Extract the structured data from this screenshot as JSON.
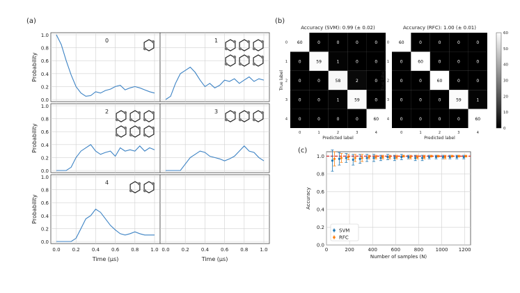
{
  "panel_labels": {
    "a": "(a)",
    "b": "(b)",
    "c": "(c)"
  },
  "colors": {
    "line": "#3b82c4",
    "grid": "#d0d0d0",
    "svm": "#1f77b4",
    "rfc": "#ff7f0e",
    "dash": "#d62728"
  },
  "chart_data": [
    {
      "type": "line",
      "panel": "a",
      "ylabel": "Probability",
      "xlabel": "Time (μs)",
      "xlim": [
        0,
        1.0
      ],
      "ylim": [
        0,
        1.0
      ],
      "xticks": [
        "0.0",
        "0.2",
        "0.4",
        "0.6",
        "0.8",
        "1.0"
      ],
      "yticks": [
        "0.0",
        "0.2",
        "0.4",
        "0.6",
        "0.8",
        "1.0"
      ],
      "subplots": [
        {
          "label": "0",
          "x": [
            0.0,
            0.05,
            0.1,
            0.15,
            0.2,
            0.25,
            0.3,
            0.35,
            0.4,
            0.45,
            0.5,
            0.55,
            0.6,
            0.65,
            0.7,
            0.75,
            0.8,
            0.85,
            0.9,
            0.95,
            1.0
          ],
          "y": [
            1.0,
            0.85,
            0.6,
            0.38,
            0.2,
            0.1,
            0.05,
            0.06,
            0.12,
            0.1,
            0.14,
            0.16,
            0.2,
            0.22,
            0.15,
            0.18,
            0.2,
            0.18,
            0.15,
            0.12,
            0.1
          ]
        },
        {
          "label": "1",
          "x": [
            0.0,
            0.05,
            0.1,
            0.15,
            0.2,
            0.25,
            0.3,
            0.35,
            0.4,
            0.45,
            0.5,
            0.55,
            0.6,
            0.65,
            0.7,
            0.75,
            0.8,
            0.85,
            0.9,
            0.95,
            1.0
          ],
          "y": [
            0.0,
            0.05,
            0.25,
            0.4,
            0.45,
            0.5,
            0.42,
            0.3,
            0.2,
            0.25,
            0.18,
            0.22,
            0.3,
            0.28,
            0.32,
            0.25,
            0.3,
            0.35,
            0.28,
            0.32,
            0.3
          ]
        },
        {
          "label": "2",
          "x": [
            0.0,
            0.05,
            0.1,
            0.15,
            0.2,
            0.25,
            0.3,
            0.35,
            0.4,
            0.45,
            0.5,
            0.55,
            0.6,
            0.65,
            0.7,
            0.75,
            0.8,
            0.85,
            0.9,
            0.95,
            1.0
          ],
          "y": [
            0.0,
            0.0,
            0.0,
            0.05,
            0.2,
            0.3,
            0.35,
            0.4,
            0.3,
            0.25,
            0.28,
            0.3,
            0.22,
            0.35,
            0.3,
            0.32,
            0.3,
            0.38,
            0.3,
            0.35,
            0.32
          ]
        },
        {
          "label": "3",
          "x": [
            0.0,
            0.05,
            0.1,
            0.15,
            0.2,
            0.25,
            0.3,
            0.35,
            0.4,
            0.45,
            0.5,
            0.55,
            0.6,
            0.65,
            0.7,
            0.75,
            0.8,
            0.85,
            0.9,
            0.95,
            1.0
          ],
          "y": [
            0.0,
            0.0,
            0.0,
            0.0,
            0.1,
            0.2,
            0.25,
            0.3,
            0.28,
            0.22,
            0.2,
            0.18,
            0.15,
            0.18,
            0.22,
            0.3,
            0.38,
            0.3,
            0.28,
            0.2,
            0.15
          ]
        },
        {
          "label": "4",
          "x": [
            0.0,
            0.05,
            0.1,
            0.15,
            0.2,
            0.25,
            0.3,
            0.35,
            0.4,
            0.45,
            0.5,
            0.55,
            0.6,
            0.65,
            0.7,
            0.75,
            0.8,
            0.85,
            0.9,
            0.95,
            1.0
          ],
          "y": [
            0.0,
            0.0,
            0.0,
            0.0,
            0.05,
            0.2,
            0.35,
            0.4,
            0.5,
            0.45,
            0.35,
            0.25,
            0.18,
            0.12,
            0.1,
            0.12,
            0.15,
            0.12,
            0.1,
            0.1,
            0.1
          ]
        }
      ]
    },
    {
      "type": "heatmap",
      "panel": "b",
      "title": "Accuracy (SVM): 0.99 (± 0.02)",
      "xlabel": "Predicted label",
      "ylabel": "True label",
      "categories": [
        "0",
        "1",
        "2",
        "3",
        "4"
      ],
      "values": [
        [
          60,
          0,
          0,
          0,
          0
        ],
        [
          0,
          59,
          1,
          0,
          0
        ],
        [
          0,
          0,
          58,
          2,
          0
        ],
        [
          0,
          0,
          1,
          59,
          0
        ],
        [
          0,
          0,
          0,
          0,
          60
        ]
      ]
    },
    {
      "type": "heatmap",
      "panel": "b",
      "title": "Accuracy (RFC): 1.00 (± 0.01)",
      "xlabel": "Predicted label",
      "ylabel": "True label",
      "categories": [
        "0",
        "1",
        "2",
        "3",
        "4"
      ],
      "values": [
        [
          60,
          0,
          0,
          0,
          0
        ],
        [
          0,
          60,
          0,
          0,
          0
        ],
        [
          0,
          0,
          60,
          0,
          0
        ],
        [
          0,
          0,
          0,
          59,
          1
        ],
        [
          0,
          0,
          0,
          0,
          60
        ]
      ],
      "colorbar": {
        "ticks": [
          "0",
          "10",
          "20",
          "30",
          "40",
          "50",
          "60"
        ],
        "range": [
          0,
          60
        ]
      }
    },
    {
      "type": "scatter",
      "panel": "c",
      "xlabel": "Number of samples (N)",
      "ylabel": "Accuracy",
      "xlim": [
        0,
        1250
      ],
      "ylim": [
        0,
        1.05
      ],
      "xticks": [
        "0",
        "200",
        "400",
        "600",
        "800",
        "1000",
        "1200"
      ],
      "yticks": [
        "0.0",
        "0.2",
        "0.4",
        "0.6",
        "0.8",
        "1.0"
      ],
      "legend": "bottom-left",
      "reference_line": 1.0,
      "series": [
        {
          "name": "SVM",
          "x": [
            60,
            120,
            180,
            240,
            300,
            360,
            420,
            480,
            540,
            600,
            660,
            720,
            780,
            840,
            900,
            960,
            1020,
            1080,
            1140,
            1200
          ],
          "y": [
            0.95,
            0.97,
            0.98,
            0.96,
            0.97,
            0.98,
            0.98,
            0.98,
            0.99,
            0.98,
            0.99,
            0.99,
            0.98,
            0.98,
            0.99,
            0.99,
            0.99,
            0.99,
            0.99,
            0.99
          ],
          "err": [
            0.12,
            0.07,
            0.05,
            0.06,
            0.05,
            0.04,
            0.04,
            0.03,
            0.03,
            0.03,
            0.03,
            0.02,
            0.03,
            0.03,
            0.02,
            0.02,
            0.02,
            0.02,
            0.02,
            0.02
          ]
        },
        {
          "name": "RFC",
          "x": [
            60,
            120,
            180,
            240,
            300,
            360,
            420,
            480,
            540,
            600,
            660,
            720,
            780,
            840,
            900,
            960,
            1020,
            1080,
            1140,
            1200
          ],
          "y": [
            0.97,
            0.98,
            0.99,
            0.98,
            0.98,
            0.99,
            0.99,
            0.99,
            0.99,
            0.99,
            1.0,
            0.99,
            0.99,
            0.99,
            1.0,
            1.0,
            0.99,
            1.0,
            1.0,
            1.0
          ],
          "err": [
            0.08,
            0.05,
            0.03,
            0.04,
            0.04,
            0.02,
            0.02,
            0.02,
            0.02,
            0.02,
            0.01,
            0.02,
            0.02,
            0.02,
            0.01,
            0.01,
            0.02,
            0.01,
            0.01,
            0.01
          ]
        }
      ]
    }
  ]
}
